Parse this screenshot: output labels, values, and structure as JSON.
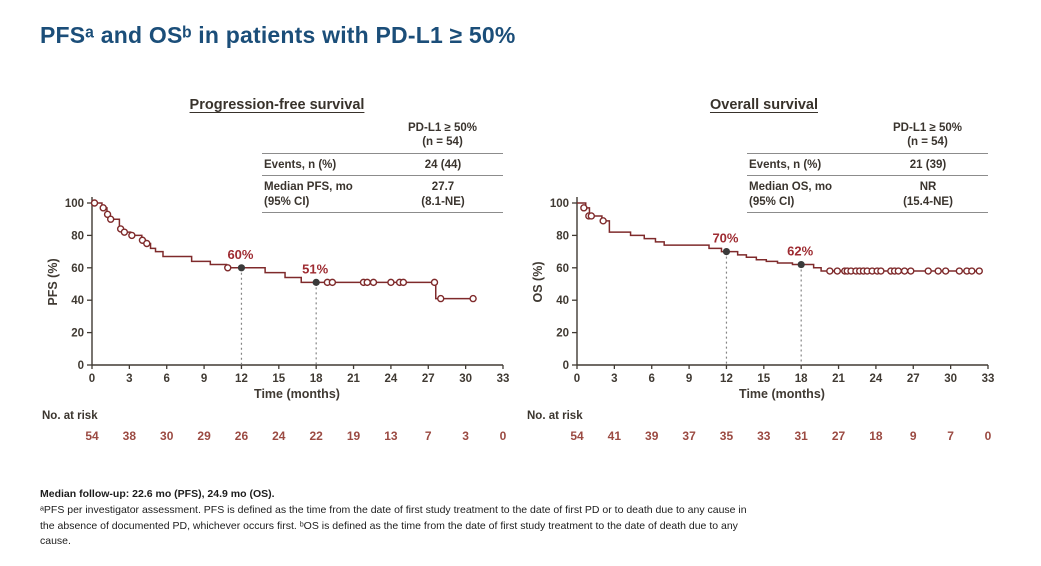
{
  "title": "PFSᵃ and OSᵇ in patients with PD-L1 ≥ 50%",
  "footnotes": {
    "line1": "Median follow-up: 22.6 mo (PFS), 24.9 mo (OS).",
    "line2": "ᵃPFS per investigator assessment. PFS is defined as the time from the date of first study treatment to the date of first PD or to death due to any cause in the absence of documented PD, whichever occurs first. ᵇOS is defined as the time from the date of first study treatment to the date of death due to any cause."
  },
  "colors": {
    "title_blue": "#1b4e79",
    "curve_maroon": "#7f2a2b",
    "landmark_red": "#9e2b31",
    "axis_text": "#403a33",
    "at_risk_value": "#9b4a42",
    "dot_gray": "#3a3a3a",
    "rule_gray": "#8c8c8c",
    "dashed_gray": "#848484"
  },
  "chart_data": [
    {
      "type": "line",
      "subtype": "kaplan-meier-step",
      "title": "Progression-free survival",
      "xlabel": "Time (months)",
      "ylabel": "PFS (%)",
      "xlim": [
        0,
        33
      ],
      "ylim": [
        0,
        100
      ],
      "xticks": [
        0,
        3,
        6,
        9,
        12,
        15,
        18,
        21,
        24,
        27,
        30,
        33
      ],
      "yticks": [
        0,
        20,
        40,
        60,
        80,
        100
      ],
      "grid": false,
      "steps": [
        [
          0,
          100
        ],
        [
          0.8,
          97
        ],
        [
          1.2,
          93
        ],
        [
          1.4,
          90
        ],
        [
          2.2,
          84
        ],
        [
          2.5,
          82
        ],
        [
          3.1,
          80
        ],
        [
          4.0,
          77
        ],
        [
          4.3,
          75
        ],
        [
          4.7,
          72
        ],
        [
          5.1,
          70
        ],
        [
          5.7,
          67
        ],
        [
          8.0,
          64
        ],
        [
          9.5,
          62
        ],
        [
          10.8,
          60
        ],
        [
          13.9,
          57
        ],
        [
          15.5,
          54
        ],
        [
          16.8,
          51
        ],
        [
          27.6,
          41
        ]
      ],
      "end_time": 30.6,
      "censors": [
        [
          0.2,
          100
        ],
        [
          0.9,
          97
        ],
        [
          1.25,
          93
        ],
        [
          1.5,
          90
        ],
        [
          2.3,
          84
        ],
        [
          2.6,
          82
        ],
        [
          3.2,
          80
        ],
        [
          4.05,
          77
        ],
        [
          4.4,
          75
        ],
        [
          10.9,
          60
        ],
        [
          18.9,
          51
        ],
        [
          19.3,
          51
        ],
        [
          21.8,
          51
        ],
        [
          22.1,
          51
        ],
        [
          22.6,
          51
        ],
        [
          24.0,
          51
        ],
        [
          24.7,
          51
        ],
        [
          25.0,
          51
        ],
        [
          27.5,
          51
        ],
        [
          28.0,
          41
        ],
        [
          30.6,
          41
        ]
      ],
      "landmarks": [
        {
          "x": 12,
          "y": 60,
          "label": "60%"
        },
        {
          "x": 18,
          "y": 51,
          "label": "51%"
        }
      ],
      "at_risk_label": "No. at risk",
      "at_risk": [
        54,
        38,
        30,
        29,
        26,
        24,
        22,
        19,
        13,
        7,
        3,
        0
      ],
      "table": {
        "header_line1": "PD-L1 ≥ 50%",
        "header_line2": "(n = 54)",
        "row1_label": "Events, n (%)",
        "row1_value": "24 (44)",
        "row2_label_line1": "Median PFS, mo",
        "row2_label_line2": "(95% CI)",
        "row2_value_line1": "27.7",
        "row2_value_line2": "(8.1-NE)"
      }
    },
    {
      "type": "line",
      "subtype": "kaplan-meier-step",
      "title": "Overall survival",
      "xlabel": "Time (months)",
      "ylabel": "OS (%)",
      "xlim": [
        0,
        33
      ],
      "ylim": [
        0,
        100
      ],
      "xticks": [
        0,
        3,
        6,
        9,
        12,
        15,
        18,
        21,
        24,
        27,
        30,
        33
      ],
      "yticks": [
        0,
        20,
        40,
        60,
        80,
        100
      ],
      "grid": false,
      "steps": [
        [
          0,
          100
        ],
        [
          0.7,
          97
        ],
        [
          1.0,
          92
        ],
        [
          2.0,
          89
        ],
        [
          2.6,
          82
        ],
        [
          4.3,
          80
        ],
        [
          5.4,
          78
        ],
        [
          6.3,
          76
        ],
        [
          7.0,
          74
        ],
        [
          10.6,
          72
        ],
        [
          11.6,
          70
        ],
        [
          12.9,
          68
        ],
        [
          13.6,
          66.5
        ],
        [
          14.4,
          65
        ],
        [
          15.2,
          64
        ],
        [
          16.1,
          63
        ],
        [
          17.3,
          62
        ],
        [
          19.0,
          60
        ],
        [
          19.6,
          58
        ]
      ],
      "end_time": 32.5,
      "censors": [
        [
          0.55,
          97
        ],
        [
          0.95,
          92
        ],
        [
          1.15,
          92
        ],
        [
          2.1,
          89
        ],
        [
          20.3,
          58
        ],
        [
          20.9,
          58
        ],
        [
          21.5,
          58
        ],
        [
          21.7,
          58
        ],
        [
          22.0,
          58
        ],
        [
          22.4,
          58
        ],
        [
          22.7,
          58
        ],
        [
          23.0,
          58
        ],
        [
          23.3,
          58
        ],
        [
          23.7,
          58
        ],
        [
          24.1,
          58
        ],
        [
          24.4,
          58
        ],
        [
          25.2,
          58
        ],
        [
          25.5,
          58
        ],
        [
          25.8,
          58
        ],
        [
          26.3,
          58
        ],
        [
          26.8,
          58
        ],
        [
          28.2,
          58
        ],
        [
          29.0,
          58
        ],
        [
          29.6,
          58
        ],
        [
          30.7,
          58
        ],
        [
          31.3,
          58
        ],
        [
          31.7,
          58
        ],
        [
          32.3,
          58
        ]
      ],
      "landmarks": [
        {
          "x": 12,
          "y": 70,
          "label": "70%"
        },
        {
          "x": 18,
          "y": 62,
          "label": "62%"
        }
      ],
      "at_risk_label": "No. at risk",
      "at_risk": [
        54,
        41,
        39,
        37,
        35,
        33,
        31,
        27,
        18,
        9,
        7,
        0
      ],
      "table": {
        "header_line1": "PD-L1 ≥ 50%",
        "header_line2": "(n = 54)",
        "row1_label": "Events, n (%)",
        "row1_value": "21 (39)",
        "row2_label_line1": "Median OS, mo",
        "row2_label_line2": "(95% CI)",
        "row2_value_line1": "NR",
        "row2_value_line2": "(15.4-NE)"
      }
    }
  ]
}
